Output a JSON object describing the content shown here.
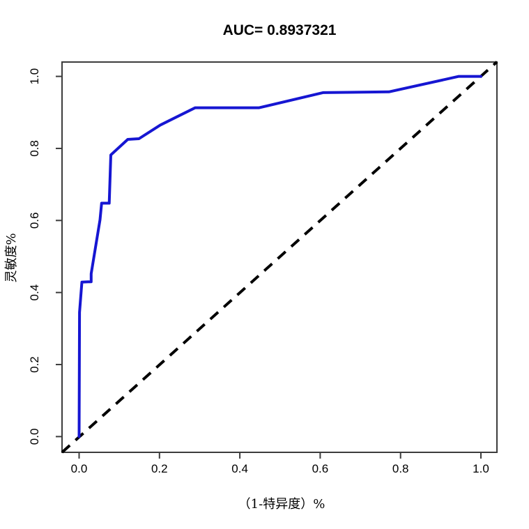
{
  "page": {
    "background_color": "#ffffff",
    "text_color": "#000000"
  },
  "chart_data": {
    "type": "line",
    "chart_kind": "roc-curve",
    "title": "AUC= 0.8937321",
    "auc_value": "0.8937321",
    "xlabel": "（1-特异度）%",
    "ylabel": "灵敏度%",
    "xlim": [
      -0.04,
      1.04
    ],
    "ylim": [
      -0.04,
      1.04
    ],
    "grid": false,
    "legend": null,
    "x_ticks": [
      0.0,
      0.2,
      0.4,
      0.6,
      0.8,
      1.0
    ],
    "x_tick_labels": [
      "0.0",
      "0.2",
      "0.4",
      "0.6",
      "0.8",
      "1.0"
    ],
    "y_ticks": [
      0.0,
      0.2,
      0.4,
      0.6,
      0.8,
      1.0
    ],
    "y_tick_labels": [
      "0.0",
      "0.2",
      "0.4",
      "0.6",
      "0.8",
      "1.0"
    ],
    "colors": {
      "curve": "#1616d2",
      "diagonal": "#000000",
      "axis": "#3c3c3c",
      "background": "#ffffff"
    },
    "series": [
      {
        "name": "roc-curve",
        "style": "solid",
        "color": "#1616d2",
        "width": 4,
        "points": [
          [
            0.0,
            0.0
          ],
          [
            0.001,
            0.345
          ],
          [
            0.007,
            0.429
          ],
          [
            0.03,
            0.43
          ],
          [
            0.03,
            0.452
          ],
          [
            0.052,
            0.602
          ],
          [
            0.056,
            0.648
          ],
          [
            0.075,
            0.648
          ],
          [
            0.079,
            0.782
          ],
          [
            0.121,
            0.825
          ],
          [
            0.149,
            0.827
          ],
          [
            0.202,
            0.865
          ],
          [
            0.289,
            0.913
          ],
          [
            0.448,
            0.913
          ],
          [
            0.607,
            0.955
          ],
          [
            0.771,
            0.957
          ],
          [
            0.945,
            1.0
          ],
          [
            1.0,
            1.0
          ]
        ]
      },
      {
        "name": "chance-diagonal",
        "style": "dashed",
        "color": "#000000",
        "width": 4,
        "points": [
          [
            -0.0425,
            -0.0437
          ],
          [
            1.0401,
            1.0404
          ]
        ]
      }
    ]
  }
}
